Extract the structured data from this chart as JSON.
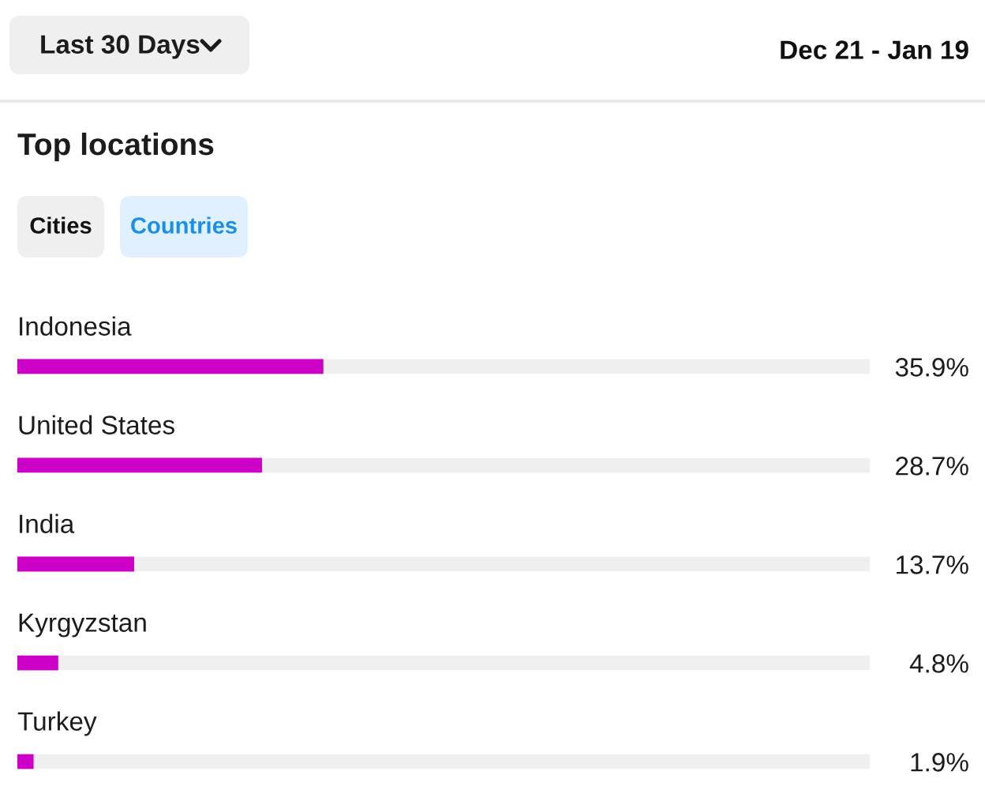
{
  "chart_data": {
    "type": "bar",
    "orientation": "horizontal",
    "title": "Top locations",
    "annotations": [
      "Last 30 Days",
      "Dec 21 - Jan 19",
      "Cities",
      "Countries"
    ],
    "categories": [
      "Indonesia",
      "United States",
      "India",
      "Kyrgyzstan",
      "Turkey"
    ],
    "values": [
      35.9,
      28.7,
      13.7,
      4.8,
      1.9
    ],
    "value_labels": [
      "35.9%",
      "28.7%",
      "13.7%",
      "4.8%",
      "1.9%"
    ],
    "color": "#cd00c8",
    "xlim": [
      0,
      100
    ]
  }
}
